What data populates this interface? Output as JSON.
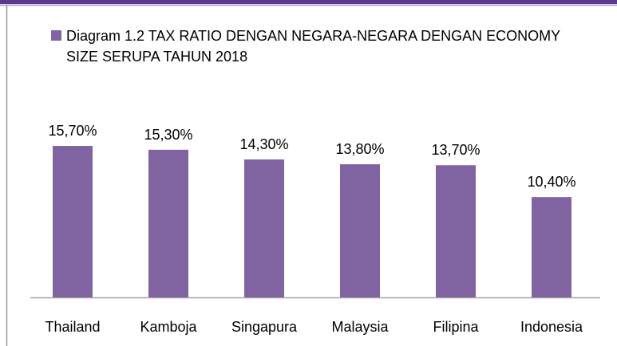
{
  "chart_data": {
    "type": "bar",
    "categories": [
      "Thailand",
      "Kamboja",
      "Singapura",
      "Malaysia",
      "Filipina",
      "Indonesia"
    ],
    "series": [
      {
        "name": "Diagram 1.2 TAX RATIO DENGAN NEGARA-NEGARA DENGAN ECONOMY SIZE SERUPA TAHUN 2018",
        "color": "#8064a2",
        "values": [
          15.7,
          15.3,
          14.3,
          13.8,
          13.7,
          10.4
        ],
        "value_labels": [
          "15,70%",
          "15,30%",
          "14,30%",
          "13,80%",
          "13,70%",
          "10,40%"
        ]
      }
    ]
  }
}
